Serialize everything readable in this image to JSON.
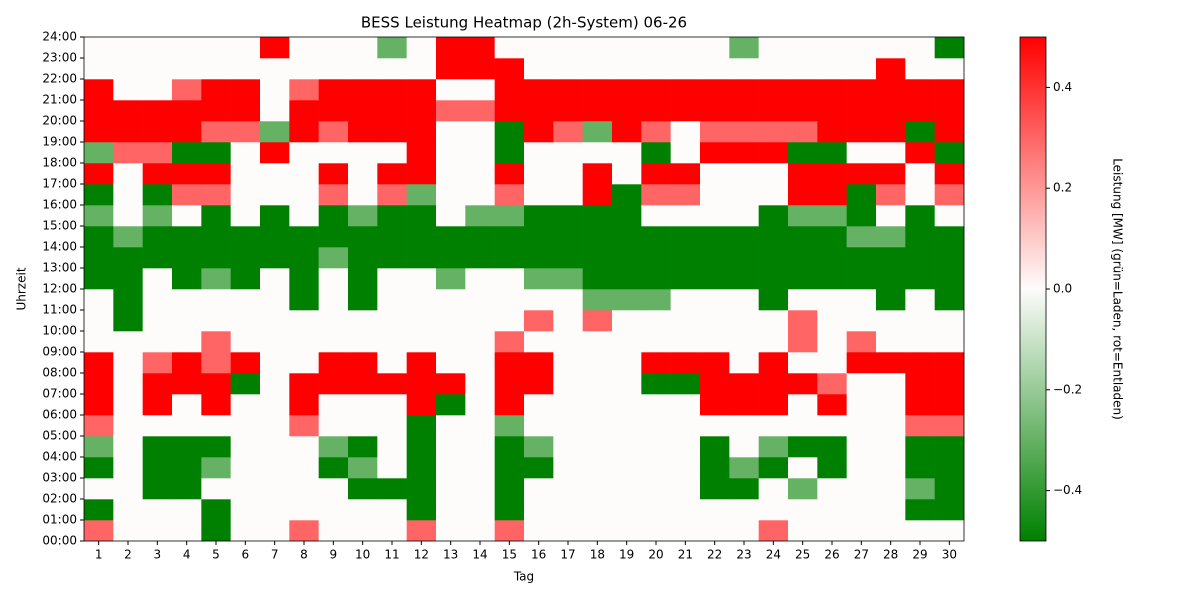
{
  "chart_data": {
    "type": "heatmap",
    "title": "BESS Leistung Heatmap (2h-System) 06-26",
    "xlabel": "Tag",
    "ylabel": "Uhrzeit",
    "colorbar_label": "Leistung [MW] (grün=Laden, rot=Entladen)",
    "categories": [
      "1",
      "2",
      "3",
      "4",
      "5",
      "6",
      "7",
      "8",
      "9",
      "10",
      "11",
      "12",
      "13",
      "14",
      "15",
      "16",
      "17",
      "18",
      "19",
      "20",
      "21",
      "22",
      "23",
      "24",
      "25",
      "26",
      "27",
      "28",
      "29",
      "30"
    ],
    "ylim": [
      0,
      24
    ],
    "yticks": [
      {
        "value": 0,
        "label": "00:00"
      },
      {
        "value": 1,
        "label": "01:00"
      },
      {
        "value": 2,
        "label": "02:00"
      },
      {
        "value": 3,
        "label": "03:00"
      },
      {
        "value": 4,
        "label": "04:00"
      },
      {
        "value": 5,
        "label": "05:00"
      },
      {
        "value": 6,
        "label": "06:00"
      },
      {
        "value": 7,
        "label": "07:00"
      },
      {
        "value": 8,
        "label": "08:00"
      },
      {
        "value": 9,
        "label": "09:00"
      },
      {
        "value": 10,
        "label": "10:00"
      },
      {
        "value": 11,
        "label": "11:00"
      },
      {
        "value": 12,
        "label": "12:00"
      },
      {
        "value": 13,
        "label": "13:00"
      },
      {
        "value": 14,
        "label": "14:00"
      },
      {
        "value": 15,
        "label": "15:00"
      },
      {
        "value": 16,
        "label": "16:00"
      },
      {
        "value": 17,
        "label": "17:00"
      },
      {
        "value": 18,
        "label": "18:00"
      },
      {
        "value": 19,
        "label": "19:00"
      },
      {
        "value": 20,
        "label": "20:00"
      },
      {
        "value": 21,
        "label": "21:00"
      },
      {
        "value": 22,
        "label": "22:00"
      },
      {
        "value": 23,
        "label": "23:00"
      },
      {
        "value": 24,
        "label": "24:00"
      }
    ],
    "clim": [
      -0.5,
      0.5
    ],
    "cticks": [
      {
        "value": -0.4,
        "label": "−0.4"
      },
      {
        "value": -0.2,
        "label": "−0.2"
      },
      {
        "value": 0,
        "label": "0.0"
      },
      0.2,
      0.4
    ],
    "colormap": [
      "#008000",
      "#fdfcfb",
      "#ff0000"
    ],
    "z": [
      [
        0.3,
        0,
        0,
        0,
        -0.5,
        0,
        0,
        0.3,
        0,
        0,
        0,
        0.3,
        0,
        0,
        0.3,
        0,
        0,
        0,
        0,
        0,
        0,
        0,
        0,
        0.3,
        0,
        0,
        0,
        0,
        0,
        0
      ],
      [
        -0.5,
        0,
        0,
        0,
        -0.5,
        0,
        0,
        0,
        0,
        0,
        0,
        -0.5,
        0,
        0,
        -0.5,
        0,
        0,
        0,
        0,
        0,
        0,
        0,
        0,
        0,
        0,
        0,
        0,
        0,
        -0.5,
        -0.5
      ],
      [
        0,
        0,
        -0.5,
        -0.5,
        0,
        0,
        0,
        0,
        0,
        -0.5,
        -0.5,
        -0.5,
        0,
        0,
        -0.5,
        0,
        0,
        0,
        0,
        0,
        0,
        -0.5,
        -0.5,
        0,
        -0.3,
        0,
        0,
        0,
        -0.3,
        -0.5
      ],
      [
        -0.5,
        0,
        -0.5,
        -0.5,
        -0.3,
        0,
        0,
        0,
        -0.5,
        -0.3,
        0,
        -0.5,
        0,
        0,
        -0.5,
        -0.5,
        0,
        0,
        0,
        0,
        0,
        -0.5,
        -0.3,
        -0.5,
        0,
        -0.5,
        0,
        0,
        -0.5,
        -0.5
      ],
      [
        -0.3,
        0,
        -0.5,
        -0.5,
        -0.5,
        0,
        0,
        0,
        -0.3,
        -0.5,
        0,
        -0.5,
        0,
        0,
        -0.5,
        -0.3,
        0,
        0,
        0,
        0,
        0,
        -0.5,
        0,
        -0.3,
        -0.5,
        -0.5,
        0,
        0,
        -0.5,
        -0.5
      ],
      [
        0.3,
        0,
        0,
        0,
        0,
        0,
        0,
        0.3,
        0,
        0,
        0,
        -0.5,
        0,
        0,
        -0.3,
        0,
        0,
        0,
        0,
        0,
        0,
        0,
        0,
        0,
        0,
        0,
        0,
        0,
        0.3,
        0.3
      ],
      [
        0.5,
        0,
        0.5,
        0,
        0.5,
        0,
        0,
        0.5,
        0,
        0,
        0,
        0.5,
        -0.5,
        0,
        0.5,
        0,
        0,
        0,
        0,
        0,
        0,
        0.5,
        0.5,
        0.5,
        0,
        0.5,
        0,
        0,
        0.5,
        0.5
      ],
      [
        0.5,
        0,
        0.5,
        0.5,
        0.5,
        -0.5,
        0,
        0.5,
        0.5,
        0.5,
        0.5,
        0.5,
        0.5,
        0,
        0.5,
        0.5,
        0,
        0,
        0,
        -0.5,
        -0.5,
        0.5,
        0.5,
        0.5,
        0.5,
        0.3,
        0,
        0,
        0.5,
        0.5
      ],
      [
        0.5,
        0,
        0.3,
        0.5,
        0.3,
        0.5,
        0,
        0,
        0.5,
        0.5,
        0,
        0.5,
        0,
        0,
        0.5,
        0.5,
        0,
        0,
        0,
        0.5,
        0.5,
        0.5,
        0,
        0.5,
        0,
        0,
        0.5,
        0.5,
        0.5,
        0.5
      ],
      [
        0,
        0,
        0,
        0,
        0.3,
        0,
        0,
        0,
        0,
        0,
        0,
        0,
        0,
        0,
        0.3,
        0,
        0,
        0,
        0,
        0,
        0,
        0,
        0,
        0,
        0.3,
        0,
        0.3,
        0,
        0,
        0
      ],
      [
        0,
        -0.5,
        0,
        0,
        0,
        0,
        0,
        0,
        0,
        0,
        0,
        0,
        0,
        0,
        0,
        0.3,
        0,
        0.3,
        0,
        0,
        0,
        0,
        0,
        0,
        0.3,
        0,
        0,
        0,
        0,
        0
      ],
      [
        0,
        -0.5,
        0,
        0,
        0,
        0,
        0,
        -0.5,
        0,
        -0.5,
        0,
        0,
        0,
        0,
        0,
        0,
        0,
        -0.3,
        -0.3,
        -0.3,
        0,
        0,
        0,
        -0.5,
        0,
        0,
        0,
        -0.5,
        0,
        -0.5
      ],
      [
        -0.5,
        -0.5,
        0,
        -0.5,
        -0.3,
        -0.5,
        0,
        -0.5,
        0,
        -0.5,
        0,
        0,
        -0.3,
        0,
        0,
        -0.3,
        -0.3,
        -0.5,
        -0.5,
        -0.5,
        -0.5,
        -0.5,
        -0.5,
        -0.5,
        -0.5,
        -0.5,
        -0.5,
        -0.5,
        -0.5,
        -0.5
      ],
      [
        -0.5,
        -0.5,
        -0.5,
        -0.5,
        -0.5,
        -0.5,
        -0.5,
        -0.5,
        -0.3,
        -0.5,
        -0.5,
        -0.5,
        -0.5,
        -0.5,
        -0.5,
        -0.5,
        -0.5,
        -0.5,
        -0.5,
        -0.5,
        -0.5,
        -0.5,
        -0.5,
        -0.5,
        -0.5,
        -0.5,
        -0.5,
        -0.5,
        -0.5,
        -0.5
      ],
      [
        -0.5,
        -0.3,
        -0.5,
        -0.5,
        -0.5,
        -0.5,
        -0.5,
        -0.5,
        -0.5,
        -0.5,
        -0.5,
        -0.5,
        -0.5,
        -0.5,
        -0.5,
        -0.5,
        -0.5,
        -0.5,
        -0.5,
        -0.5,
        -0.5,
        -0.5,
        -0.5,
        -0.5,
        -0.5,
        -0.5,
        -0.3,
        -0.3,
        -0.5,
        -0.5
      ],
      [
        -0.3,
        0,
        -0.3,
        0,
        -0.5,
        0,
        -0.5,
        0,
        -0.5,
        -0.3,
        -0.5,
        -0.5,
        0,
        -0.3,
        -0.3,
        -0.5,
        -0.5,
        -0.5,
        -0.5,
        0,
        0,
        0,
        0,
        -0.5,
        -0.3,
        -0.3,
        -0.5,
        0,
        -0.5,
        0
      ],
      [
        -0.5,
        0,
        -0.5,
        0.3,
        0.3,
        0,
        0,
        0,
        0.3,
        0,
        0.3,
        -0.3,
        0,
        0,
        0.3,
        0,
        0,
        0.5,
        -0.5,
        0.3,
        0.3,
        0,
        0,
        0,
        0.5,
        0.5,
        -0.5,
        0.3,
        0,
        0.3
      ],
      [
        0.5,
        0,
        0.5,
        0.5,
        0.5,
        0,
        0,
        0,
        0.5,
        0,
        0.5,
        0.5,
        0,
        0,
        0.5,
        0,
        0,
        0.5,
        0,
        0.5,
        0.5,
        0,
        0,
        0,
        0.5,
        0.5,
        0.5,
        0.5,
        0,
        0.5
      ],
      [
        -0.3,
        0.3,
        0.3,
        -0.5,
        -0.5,
        0,
        0.5,
        0,
        0,
        0,
        0,
        0.5,
        0,
        0,
        -0.5,
        0,
        0,
        0,
        0,
        -0.5,
        0,
        0.5,
        0.5,
        0.5,
        -0.5,
        -0.5,
        0,
        0,
        0.5,
        -0.5
      ],
      [
        0.5,
        0.5,
        0.5,
        0.5,
        0.3,
        0.3,
        -0.3,
        0.5,
        0.3,
        0.5,
        0.5,
        0.5,
        0,
        0,
        -0.5,
        0.5,
        0.3,
        -0.3,
        0.5,
        0.3,
        0,
        0.3,
        0.3,
        0.3,
        0.3,
        0.5,
        0.5,
        0.5,
        -0.5,
        0.5
      ],
      [
        0.5,
        0.5,
        0.5,
        0.5,
        0.5,
        0.5,
        0,
        0.5,
        0.5,
        0.5,
        0.5,
        0.5,
        0.3,
        0.3,
        0.5,
        0.5,
        0.5,
        0.5,
        0.5,
        0.5,
        0.5,
        0.5,
        0.5,
        0.5,
        0.5,
        0.5,
        0.5,
        0.5,
        0.5,
        0.5
      ],
      [
        0.5,
        0,
        0,
        0.3,
        0.5,
        0.5,
        0,
        0.3,
        0.5,
        0.5,
        0.5,
        0.5,
        0,
        0,
        0.5,
        0.5,
        0.5,
        0.5,
        0.5,
        0.5,
        0.5,
        0.5,
        0.5,
        0.5,
        0.5,
        0.5,
        0.5,
        0.5,
        0.5,
        0.5
      ],
      [
        0,
        0,
        0,
        0,
        0,
        0,
        0,
        0,
        0,
        0,
        0,
        0,
        0.5,
        0.5,
        0.5,
        0,
        0,
        0,
        0,
        0,
        0,
        0,
        0,
        0,
        0,
        0,
        0,
        0.5,
        0,
        0
      ],
      [
        0,
        0,
        0,
        0,
        0,
        0,
        0.5,
        0,
        0,
        0,
        -0.3,
        0,
        0.5,
        0.5,
        0,
        0,
        0,
        0,
        0,
        0,
        0,
        0,
        -0.3,
        0,
        0,
        0,
        0,
        0,
        0,
        -0.5
      ]
    ]
  }
}
